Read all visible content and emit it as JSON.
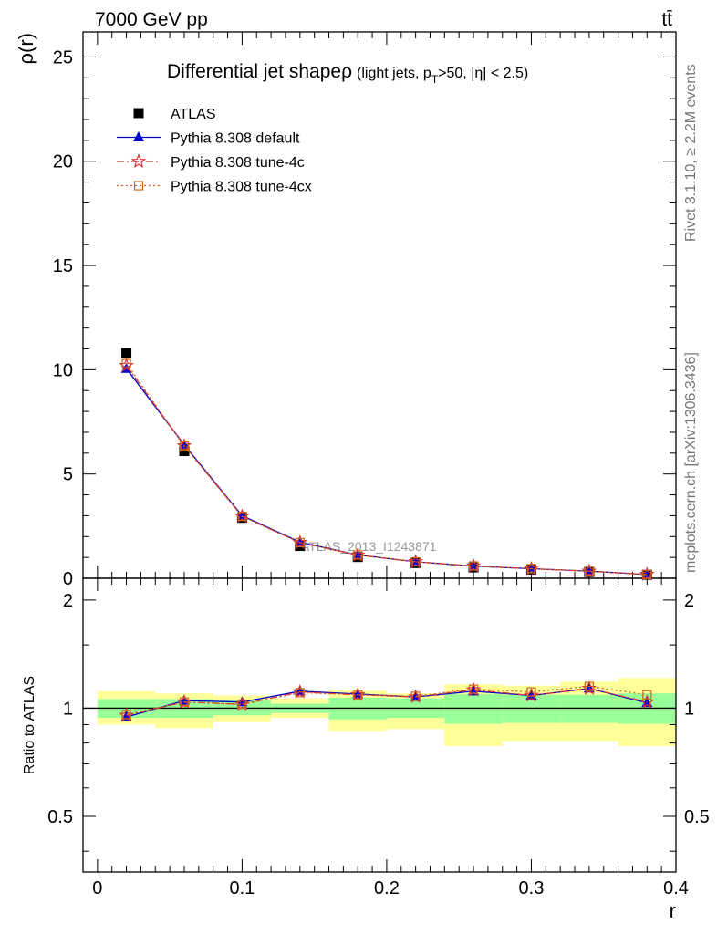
{
  "header": {
    "left": "7000 GeV pp",
    "right": "tt̄"
  },
  "side_labels": {
    "rivet": "Rivet 3.1.10, ≥ 2.2M events",
    "mcplots": "mcplots.cern.ch [arXiv:1306.3436]"
  },
  "title": {
    "main": "Differential jet shape",
    "symbol": "ρ",
    "sub": "(light jets, p",
    "sub_subscript": "T",
    "sub_tail": ">50, |η| < 2.5)"
  },
  "watermark": "ATLAS_2013_I1243871",
  "colors": {
    "atlas": "#000000",
    "default": "#0000cc",
    "tune4c": "#dd3333",
    "tune4cx": "#cc6622",
    "band_inner": "#99ff99",
    "band_outer": "#ffff99"
  },
  "chart_data": [
    {
      "type": "scatter",
      "ylabel": "ρ(r)",
      "ylim": [
        0,
        26.2
      ],
      "xlim": [
        -0.01,
        0.4
      ],
      "yticks": [
        0,
        5,
        10,
        15,
        20,
        25
      ],
      "x": [
        0.02,
        0.06,
        0.1,
        0.14,
        0.18,
        0.22,
        0.26,
        0.3,
        0.34,
        0.38
      ],
      "series": [
        {
          "name": "ATLAS",
          "values": [
            10.8,
            6.1,
            2.9,
            1.55,
            1.02,
            0.73,
            0.52,
            0.42,
            0.3,
            0.17
          ]
        },
        {
          "name": "Pythia 8.308 default",
          "values": [
            10.05,
            6.4,
            3.0,
            1.73,
            1.12,
            0.79,
            0.58,
            0.46,
            0.34,
            0.18
          ]
        },
        {
          "name": "Pythia 8.308 tune-4c",
          "values": [
            10.2,
            6.35,
            2.97,
            1.71,
            1.11,
            0.79,
            0.59,
            0.455,
            0.34,
            0.18
          ]
        },
        {
          "name": "Pythia 8.308 tune-4cx",
          "values": [
            10.3,
            6.35,
            2.97,
            1.71,
            1.12,
            0.79,
            0.59,
            0.465,
            0.34,
            0.185
          ]
        }
      ],
      "legend": "top-left"
    },
    {
      "type": "line",
      "ylabel": "Ratio to ATLAS",
      "xlabel": "r",
      "ylim": [
        0.35,
        2.3
      ],
      "xlim": [
        -0.01,
        0.4
      ],
      "yticks": [
        0.5,
        1,
        2
      ],
      "yticklabels": [
        "0.5",
        "1",
        "2"
      ],
      "xticks": [
        0,
        0.1,
        0.2,
        0.3,
        0.4
      ],
      "xticklabels": [
        "0",
        "0.1",
        "0.2",
        "0.3",
        "0.4"
      ],
      "x": [
        0.02,
        0.06,
        0.1,
        0.14,
        0.18,
        0.22,
        0.26,
        0.3,
        0.34,
        0.38
      ],
      "bin_edges": [
        0,
        0.04,
        0.08,
        0.12,
        0.16,
        0.2,
        0.24,
        0.28,
        0.32,
        0.36,
        0.4
      ],
      "band_inner": {
        "lo": [
          0.94,
          0.94,
          0.955,
          0.97,
          0.93,
          0.94,
          0.905,
          0.91,
          0.91,
          0.905
        ],
        "hi": [
          1.06,
          1.06,
          1.05,
          1.03,
          1.07,
          1.065,
          1.095,
          1.09,
          1.09,
          1.1
        ]
      },
      "band_outer": {
        "lo": [
          0.9,
          0.88,
          0.915,
          0.94,
          0.865,
          0.875,
          0.785,
          0.81,
          0.81,
          0.785
        ],
        "hi": [
          1.115,
          1.1,
          1.085,
          1.065,
          1.12,
          1.1,
          1.165,
          1.155,
          1.185,
          1.215
        ]
      },
      "series": [
        {
          "name": "Pythia 8.308 default",
          "values": [
            0.945,
            1.05,
            1.04,
            1.115,
            1.095,
            1.075,
            1.115,
            1.085,
            1.135,
            1.035
          ]
        },
        {
          "name": "Pythia 8.308 tune-4c",
          "values": [
            0.955,
            1.04,
            1.025,
            1.11,
            1.09,
            1.075,
            1.125,
            1.085,
            1.135,
            1.04
          ]
        },
        {
          "name": "Pythia 8.308 tune-4cx",
          "values": [
            0.96,
            1.04,
            1.025,
            1.105,
            1.09,
            1.08,
            1.13,
            1.11,
            1.15,
            1.09
          ]
        }
      ]
    }
  ]
}
